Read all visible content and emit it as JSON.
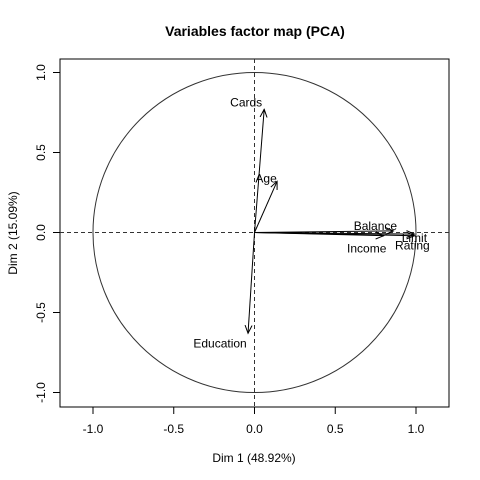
{
  "chart_data": {
    "type": "scatter",
    "title": "Variables factor map (PCA)",
    "xlabel": "Dim 1 (48.92%)",
    "ylabel": "Dim 2 (15.09%)",
    "xlim": [
      -1.2,
      1.2
    ],
    "ylim": [
      -1.1,
      1.1
    ],
    "x_ticks": [
      -1.0,
      -0.5,
      0.0,
      0.5,
      1.0
    ],
    "y_ticks": [
      -1.0,
      -0.5,
      0.0,
      0.5,
      1.0
    ],
    "x_tick_labels": [
      "-1.0",
      "-0.5",
      "0.0",
      "0.5",
      "1.0"
    ],
    "y_tick_labels": [
      "-1.0",
      "-0.5",
      "0.0",
      "0.5",
      "1.0"
    ],
    "unit_circle": true,
    "reference_lines": "dashed at x=0 and y=0",
    "vectors": [
      {
        "name": "Limit",
        "x": 0.99,
        "y": -0.01
      },
      {
        "name": "Rating",
        "x": 0.99,
        "y": -0.02
      },
      {
        "name": "Balance",
        "x": 0.86,
        "y": 0.01
      },
      {
        "name": "Income",
        "x": 0.8,
        "y": -0.02
      },
      {
        "name": "Cards",
        "x": 0.06,
        "y": 0.77
      },
      {
        "name": "Age",
        "x": 0.14,
        "y": 0.32
      },
      {
        "name": "Education",
        "x": -0.04,
        "y": -0.63
      }
    ]
  }
}
